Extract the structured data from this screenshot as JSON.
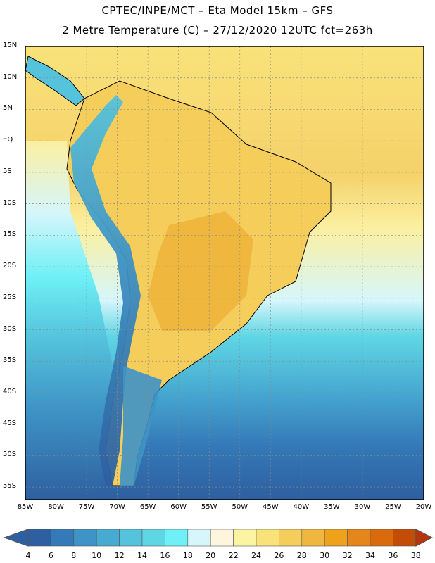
{
  "header": {
    "line1": "CPTEC/INPE/MCT –  Eta Model 15km – GFS",
    "line2": "2 Metre Temperature (C) – 27/12/2020 12UTC fct=263h"
  },
  "map": {
    "lat_labels": [
      "15N",
      "10N",
      "5N",
      "EQ",
      "5S",
      "10S",
      "15S",
      "20S",
      "25S",
      "30S",
      "35S",
      "40S",
      "45S",
      "50S",
      "55S"
    ],
    "lon_labels": [
      "85W",
      "80W",
      "75W",
      "70W",
      "65W",
      "60W",
      "55W",
      "50W",
      "45W",
      "40W",
      "35W",
      "30W",
      "25W",
      "20W"
    ],
    "extent": {
      "lon_min": -85,
      "lon_max": -20,
      "lat_min": -57,
      "lat_max": 15
    }
  },
  "colorbar": {
    "labels": [
      "4",
      "6",
      "8",
      "10",
      "12",
      "14",
      "16",
      "18",
      "20",
      "22",
      "24",
      "26",
      "28",
      "30",
      "32",
      "34",
      "36",
      "38"
    ],
    "colors": [
      "#2e5fa0",
      "#3479b8",
      "#3e94c6",
      "#47aad2",
      "#55c3dc",
      "#5fd6e4",
      "#6ef0f6",
      "#d6f6fb",
      "#fdf6dc",
      "#fbf5a3",
      "#f9e27a",
      "#f5cd5a",
      "#efb73e",
      "#eea21c",
      "#e4861c",
      "#d96b0c",
      "#c34c07",
      "#b8340a"
    ]
  }
}
